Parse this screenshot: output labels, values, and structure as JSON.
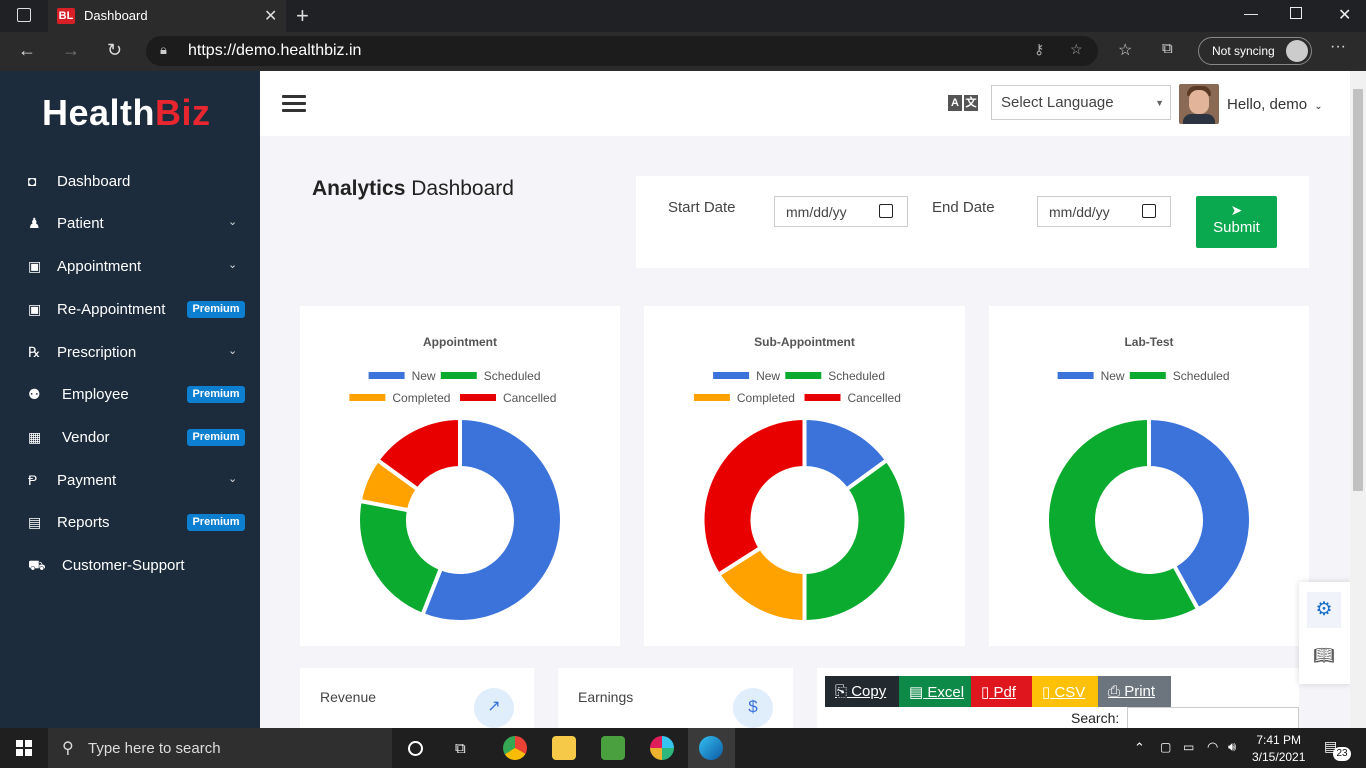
{
  "browser": {
    "tab_favicon": "BL",
    "tab_title": "Dashboard",
    "url": "https://demo.healthbiz.in",
    "sync_label": "Not syncing"
  },
  "sidebar": {
    "logo_main": "Health",
    "logo_accent": "Biz",
    "items": [
      {
        "label": "Dashboard",
        "icon": "dashboard-icon",
        "chevron": false,
        "badge": ""
      },
      {
        "label": "Patient",
        "icon": "patient-icon",
        "chevron": true,
        "badge": ""
      },
      {
        "label": "Appointment",
        "icon": "calendar-check-icon",
        "chevron": true,
        "badge": ""
      },
      {
        "label": "Re-Appointment",
        "icon": "calendar-check-icon",
        "chevron": false,
        "badge": "Premium"
      },
      {
        "label": "Prescription",
        "icon": "prescription-icon",
        "chevron": true,
        "badge": ""
      },
      {
        "label": "Employee",
        "icon": "users-icon",
        "chevron": false,
        "badge": "Premium"
      },
      {
        "label": "Vendor",
        "icon": "vendor-icon",
        "chevron": false,
        "badge": "Premium"
      },
      {
        "label": "Payment",
        "icon": "paypal-icon",
        "chevron": true,
        "badge": ""
      },
      {
        "label": "Reports",
        "icon": "report-icon",
        "chevron": false,
        "badge": "Premium"
      },
      {
        "label": "Customer-Support",
        "icon": "ambulance-icon",
        "chevron": false,
        "badge": ""
      }
    ]
  },
  "header": {
    "language_placeholder": "Select Language",
    "greeting": "Hello, demo"
  },
  "page": {
    "title_bold": "Analytics",
    "title_rest": "Dashboard",
    "start_date_label": "Start Date",
    "end_date_label": "End Date",
    "start_date_placeholder": "mm/dd/yy",
    "end_date_placeholder": "mm/dd/yy",
    "submit_label": "Submit"
  },
  "colors": {
    "new": "#3b73db",
    "scheduled": "#0aab2e",
    "completed": "#ffa200",
    "cancelled": "#e80000",
    "submit": "#0aa84f",
    "sidebar": "#1c2c3c"
  },
  "chart_data": [
    {
      "type": "pie",
      "title": "Appointment",
      "categories": [
        "New",
        "Scheduled",
        "Completed",
        "Cancelled"
      ],
      "values": [
        56,
        22,
        7,
        15
      ]
    },
    {
      "type": "pie",
      "title": "Sub-Appointment",
      "categories": [
        "New",
        "Scheduled",
        "Completed",
        "Cancelled"
      ],
      "values": [
        15,
        35,
        16,
        34
      ]
    },
    {
      "type": "pie",
      "title": "Lab-Test",
      "categories": [
        "New",
        "Scheduled"
      ],
      "values": [
        42,
        58
      ]
    }
  ],
  "stats": {
    "revenue_label": "Revenue",
    "earnings_label": "Earnings"
  },
  "table_buttons": {
    "copy": "Copy",
    "excel": "Excel",
    "pdf": "Pdf",
    "csv": "CSV",
    "print": "Print",
    "search_label": "Search:"
  },
  "taskbar": {
    "search_placeholder": "Type here to search",
    "time": "7:41 PM",
    "date": "3/15/2021",
    "notification_count": "23"
  }
}
